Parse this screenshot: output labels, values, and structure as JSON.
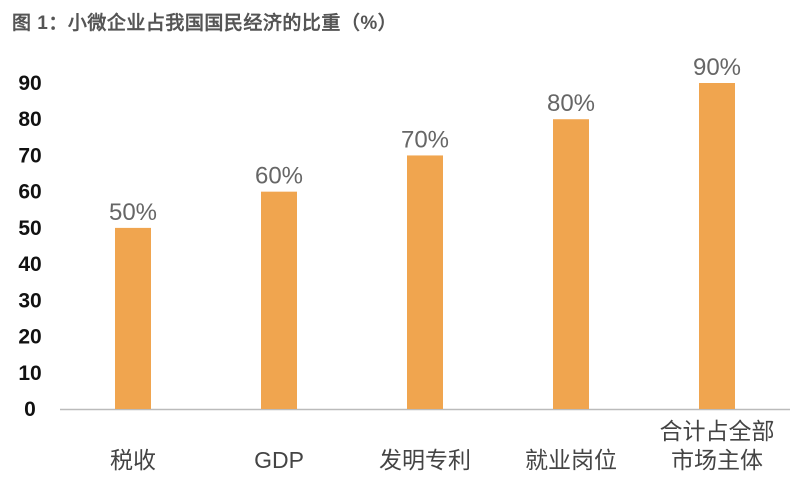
{
  "chart_data": {
    "type": "bar",
    "title": "图 1：小微企业占我国国民经济的比重（%）",
    "categories": [
      "税收",
      "GDP",
      "发明专利",
      "就业岗位",
      "合计占全部\n市场主体"
    ],
    "values": [
      50,
      60,
      70,
      80,
      90
    ],
    "value_labels": [
      "50%",
      "60%",
      "70%",
      "80%",
      "90%"
    ],
    "xlabel": "",
    "ylabel": "",
    "ylim": [
      0,
      90
    ],
    "yticks": [
      0,
      10,
      20,
      30,
      40,
      50,
      60,
      70,
      80,
      90
    ],
    "grid": false,
    "legend": "none",
    "colors": {
      "bar": "#F0A54F",
      "axis": "#bbbbbb",
      "tick_label": "#111111",
      "value_label": "#666666",
      "title": "#555555",
      "category_label": "#444444"
    }
  }
}
